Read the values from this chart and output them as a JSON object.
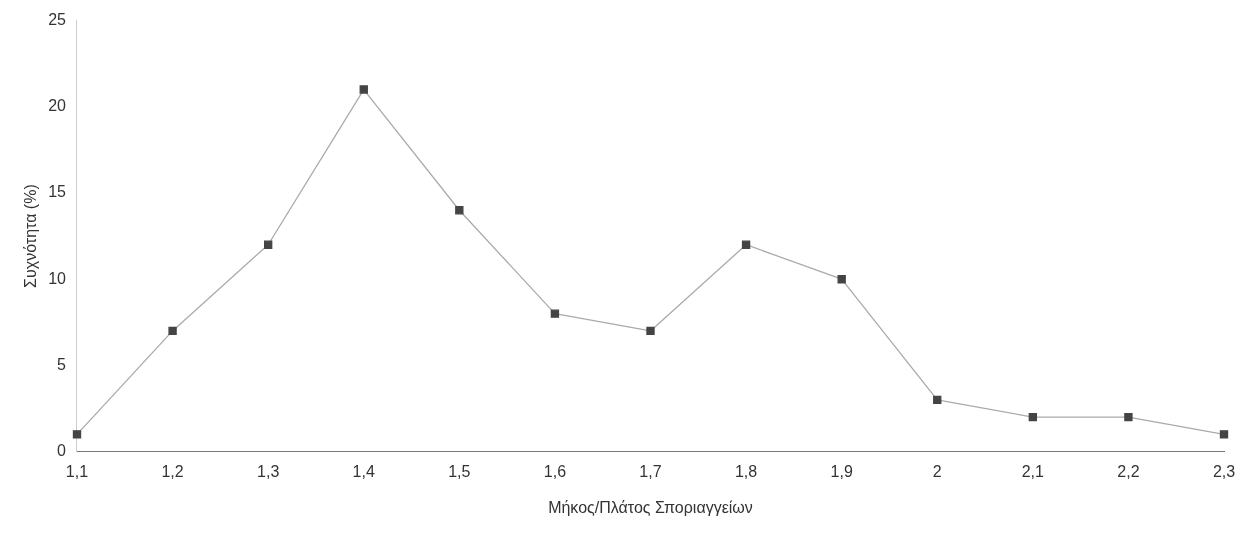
{
  "chart_data": {
    "type": "line",
    "xlabel": "Μήκος/Πλάτος Σποριαγγείων",
    "ylabel": "Συχνότητα (%)",
    "categories": [
      "1,1",
      "1,2",
      "1,3",
      "1,4",
      "1,5",
      "1,6",
      "1,7",
      "1,8",
      "1,9",
      "2",
      "2,1",
      "2,2",
      "2,3"
    ],
    "series": [
      {
        "color": "#444444",
        "values": [
          1,
          7,
          12,
          21,
          14,
          8,
          7,
          12,
          10,
          3,
          2,
          2,
          1
        ]
      }
    ],
    "ylim": [
      0,
      25
    ],
    "yticks": [
      0,
      5,
      10,
      15,
      20,
      25
    ],
    "grid": false,
    "legend": false,
    "marker": "square",
    "line_style": "solid"
  }
}
